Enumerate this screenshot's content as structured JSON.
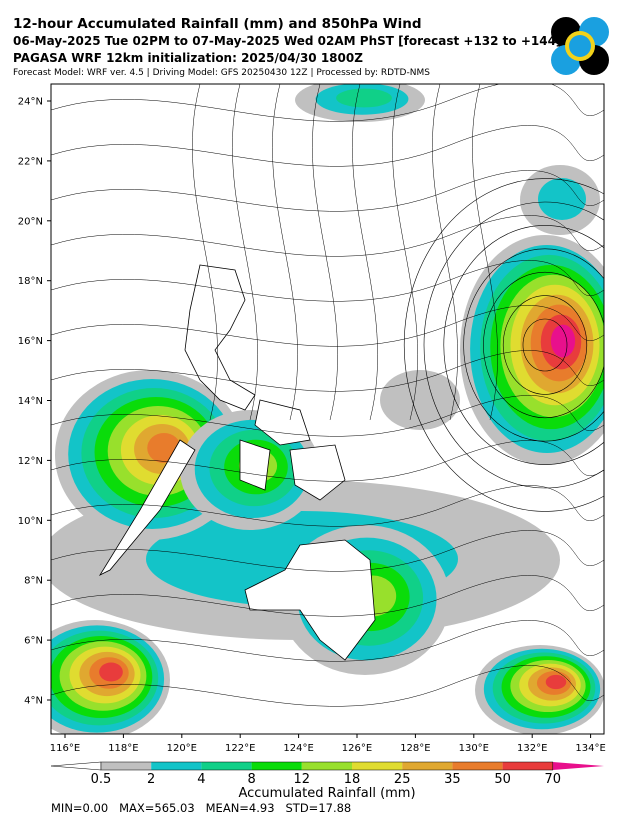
{
  "header": {
    "title": "12-hour Accumulated Rainfall (mm) and 850hPa Wind",
    "subtitle": "06-May-2025 Tue 02PM to 07-May-2025 Wed 02AM PhST [forecast +132 to +144]",
    "initialization": "PAGASA WRF 12km initialization: 2025/04/30 1800Z",
    "model_info": "Forecast Model: WRF ver. 4.5 | Driving Model: GFS 20250430 12Z | Processed by: RDTD-NMS"
  },
  "map": {
    "lat_labels": [
      "24°N",
      "22°N",
      "20°N",
      "18°N",
      "16°N",
      "14°N",
      "12°N",
      "10°N",
      "8°N",
      "6°N",
      "4°N"
    ],
    "lon_labels": [
      "116°E",
      "118°E",
      "120°E",
      "122°E",
      "124°E",
      "126°E",
      "128°E",
      "130°E",
      "132°E",
      "134°E"
    ]
  },
  "colorbar": {
    "labels": [
      "0.5",
      "2",
      "4",
      "8",
      "12",
      "18",
      "25",
      "35",
      "50",
      "70"
    ],
    "colors": [
      "#ffffff",
      "#c0c0c0",
      "#13c4c8",
      "#10d088",
      "#0adc0a",
      "#98e02c",
      "#e0dc30",
      "#e0a830",
      "#e87c2c",
      "#e83c3c",
      "#e8108c"
    ],
    "title": "Accumulated Rainfall (mm)"
  },
  "stats": "MIN=0.00   MAX=565.03   MEAN=4.93   STD=17.88"
}
